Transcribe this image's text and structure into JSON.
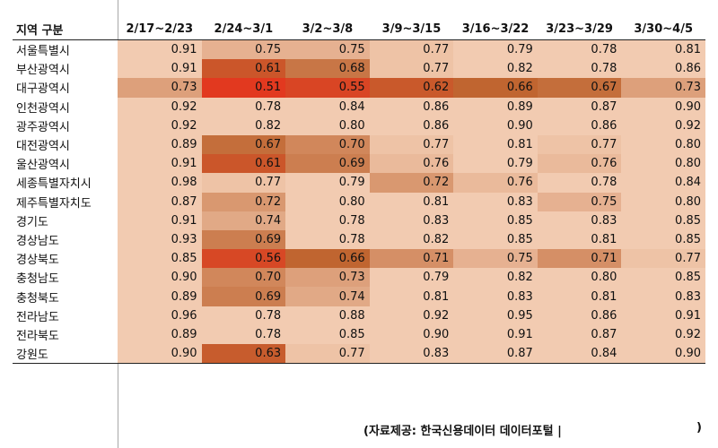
{
  "chart_data": {
    "type": "heatmap",
    "header_region": "지역 구분",
    "columns": [
      "2/17~2/23",
      "2/24~3/1",
      "3/2~3/8",
      "3/9~3/15",
      "3/16~3/22",
      "3/23~3/29",
      "3/30~4/5"
    ],
    "rows": [
      {
        "region": "서울특별시",
        "values": [
          "0.91",
          "0.75",
          "0.75",
          "0.77",
          "0.79",
          "0.78",
          "0.81"
        ]
      },
      {
        "region": "부산광역시",
        "values": [
          "0.91",
          "0.61",
          "0.68",
          "0.77",
          "0.82",
          "0.78",
          "0.86"
        ]
      },
      {
        "region": "대구광역시",
        "values": [
          "0.73",
          "0.51",
          "0.55",
          "0.62",
          "0.66",
          "0.67",
          "0.73"
        ]
      },
      {
        "region": "인천광역시",
        "values": [
          "0.92",
          "0.78",
          "0.84",
          "0.86",
          "0.89",
          "0.87",
          "0.90"
        ]
      },
      {
        "region": "광주광역시",
        "values": [
          "0.92",
          "0.82",
          "0.80",
          "0.86",
          "0.90",
          "0.86",
          "0.92"
        ]
      },
      {
        "region": "대전광역시",
        "values": [
          "0.89",
          "0.67",
          "0.70",
          "0.77",
          "0.81",
          "0.77",
          "0.80"
        ]
      },
      {
        "region": "울산광역시",
        "values": [
          "0.91",
          "0.61",
          "0.69",
          "0.76",
          "0.79",
          "0.76",
          "0.80"
        ]
      },
      {
        "region": "세종특별자치시",
        "values": [
          "0.98",
          "0.77",
          "0.79",
          "0.72",
          "0.76",
          "0.78",
          "0.84"
        ]
      },
      {
        "region": "제주특별자치도",
        "values": [
          "0.87",
          "0.72",
          "0.80",
          "0.81",
          "0.83",
          "0.75",
          "0.80"
        ]
      },
      {
        "region": "경기도",
        "values": [
          "0.91",
          "0.74",
          "0.78",
          "0.83",
          "0.85",
          "0.83",
          "0.85"
        ]
      },
      {
        "region": "경상남도",
        "values": [
          "0.93",
          "0.69",
          "0.78",
          "0.82",
          "0.85",
          "0.81",
          "0.85"
        ]
      },
      {
        "region": "경상북도",
        "values": [
          "0.85",
          "0.56",
          "0.66",
          "0.71",
          "0.75",
          "0.71",
          "0.77"
        ]
      },
      {
        "region": "충청남도",
        "values": [
          "0.90",
          "0.70",
          "0.73",
          "0.79",
          "0.82",
          "0.80",
          "0.85"
        ]
      },
      {
        "region": "충청북도",
        "values": [
          "0.89",
          "0.69",
          "0.74",
          "0.81",
          "0.83",
          "0.81",
          "0.83"
        ]
      },
      {
        "region": "전라남도",
        "values": [
          "0.96",
          "0.78",
          "0.88",
          "0.92",
          "0.95",
          "0.86",
          "0.91"
        ]
      },
      {
        "region": "전라북도",
        "values": [
          "0.89",
          "0.78",
          "0.85",
          "0.90",
          "0.91",
          "0.87",
          "0.92"
        ]
      },
      {
        "region": "강원도",
        "values": [
          "0.90",
          "0.63",
          "0.77",
          "0.83",
          "0.87",
          "0.84",
          "0.90"
        ]
      }
    ],
    "colors": {
      "low": "#e2391f",
      "mid": "#c06530",
      "high": "#f2cbb1",
      "background": "#ffffff"
    }
  },
  "source_text": "(자료제공: 한국신용데이터 데이터포털 |",
  "source_close": ")"
}
